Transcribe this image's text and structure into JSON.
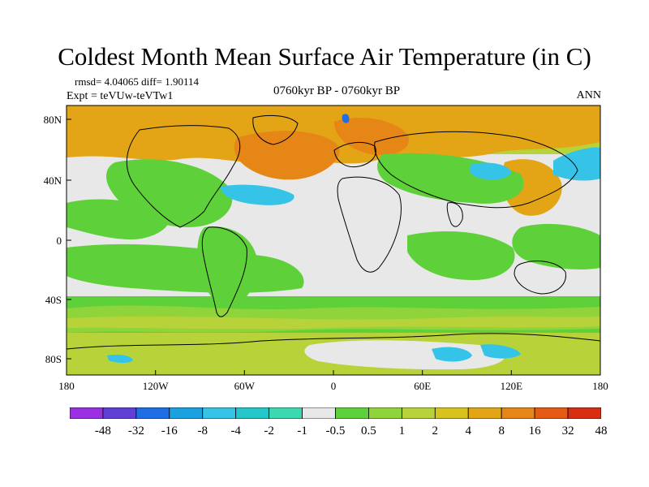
{
  "title": "Coldest Month Mean Surface Air Temperature (in C)",
  "stats": "rmsd= 4.04065 diff= 1.90114",
  "experiment": "Expt = teVUw-teVTw1",
  "period": "0760kyr BP - 0760kyr BP",
  "season": "ANN",
  "map": {
    "lon_ticks": [
      "180",
      "120W",
      "60W",
      "0",
      "60E",
      "120E",
      "180"
    ],
    "lat_ticks": [
      "80N",
      "40N",
      "0",
      "40S",
      "80S"
    ]
  },
  "legend": {
    "colors": [
      "#9b2fe3",
      "#5f3fd6",
      "#1f6ee6",
      "#1aa1e0",
      "#35c3e8",
      "#23c7c9",
      "#3bd9b0",
      "#e8e8e8",
      "#5ed13a",
      "#8fd43b",
      "#b8d33a",
      "#d7c21e",
      "#e3a516",
      "#e58616",
      "#e55a14",
      "#d92e12"
    ],
    "labels": [
      "-48",
      "-32",
      "-16",
      "-8",
      "-4",
      "-2",
      "-1",
      "-0.5",
      "0.5",
      "1",
      "2",
      "4",
      "8",
      "16",
      "32",
      "48"
    ]
  },
  "palette": {
    "neutral": "#e8e8e8",
    "green": "#5ed13a",
    "lightgreen": "#8fd43b",
    "yellowgreen": "#b8d33a",
    "yellow": "#d7c21e",
    "orange": "#e3a516",
    "darkorange": "#e58616",
    "cyan": "#35c3e8",
    "teal": "#23c7c9",
    "blue": "#1f6ee6"
  }
}
